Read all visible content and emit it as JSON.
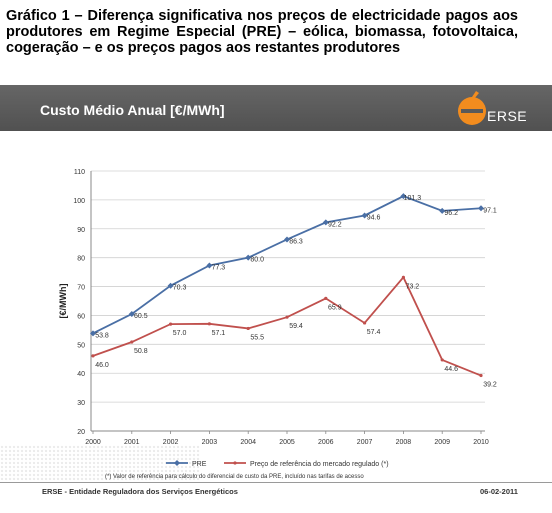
{
  "caption": "Gráfico 1 – Diferença significativa nos preços de electricidade pagos aos produtores em Regime Especial (PRE) – eólica, biomassa, fotovoltaica, cogeração – e os preços pagos aos restantes produtores",
  "banner": {
    "title": "Custo Médio Anual [€/MWh]",
    "logo_text": "ERSE"
  },
  "colors": {
    "pre": "#4a6fa5",
    "ref": "#c0504d",
    "logo_orange": "#f28c1e"
  },
  "footer": {
    "footnote": "(*) Valor de referência para cálculo do diferencial de custo da PRE, incluído nas tarifas de acesso",
    "left": "ERSE - Entidade Reguladora dos Serviços Energéticos",
    "right": "06-02-2011"
  },
  "chart_data": {
    "type": "line",
    "x": [
      "2000",
      "2001",
      "2002",
      "2003",
      "2004",
      "2005",
      "2006",
      "2007",
      "2008",
      "2009",
      "2010"
    ],
    "series": [
      {
        "name": "PRE",
        "values": [
          53.8,
          60.5,
          70.3,
          77.3,
          80.0,
          86.3,
          92.2,
          94.6,
          101.3,
          96.2,
          97.1
        ],
        "labels": [
          "53.8",
          "60.5",
          "70.3",
          "77.3",
          "80.0",
          "86.3",
          "92.2",
          "94.6",
          "101.3",
          "96.2",
          "97.1"
        ]
      },
      {
        "name": "Preço de referência do mercado regulado (*)",
        "values": [
          46.0,
          50.8,
          57.0,
          57.1,
          55.5,
          59.4,
          65.9,
          57.4,
          73.2,
          44.6,
          39.2
        ],
        "labels": [
          "46.0",
          "50.8",
          "57.0",
          "57.1",
          "55.5",
          "59.4",
          "65.9",
          "57.4",
          "73.2",
          "44.6",
          "39.2"
        ]
      }
    ],
    "ylabel": "[€/MWh]",
    "ylim": [
      20,
      110
    ],
    "yticks": [
      "20",
      "30",
      "40",
      "50",
      "60",
      "70",
      "80",
      "90",
      "100",
      "110"
    ],
    "grid": true,
    "legend": "bottom"
  }
}
